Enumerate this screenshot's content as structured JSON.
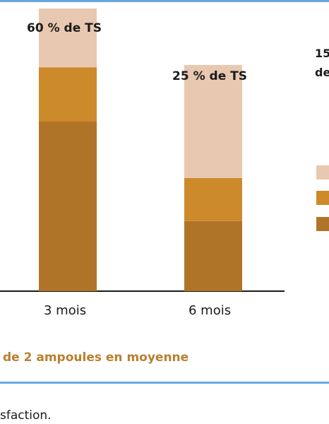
{
  "chart_data": {
    "type": "bar",
    "stacked": true,
    "categories": [
      "3 mois",
      "6 mois"
    ],
    "bar_labels": [
      "60 % de TS",
      "25 % de TS"
    ],
    "series": [
      {
        "values": [
          75,
          31
        ],
        "color": "#b07429"
      },
      {
        "values": [
          24,
          19
        ],
        "color": "#cd8a2a"
      },
      {
        "values": [
          26,
          50
        ],
        "color": "#e8c8b0"
      }
    ],
    "ylim": [
      0,
      125
    ],
    "grid": false
  },
  "right_fragment": {
    "line1": "15",
    "line2": "de"
  },
  "legend_colors": [
    "#e8c8b0",
    "#cd8a2a",
    "#b07429"
  ],
  "caption": "de 2 ampoules en moyenne",
  "footnote": "sfaction.",
  "colors": {
    "rule": "#6aa6e0",
    "caption": "#b8802e"
  }
}
